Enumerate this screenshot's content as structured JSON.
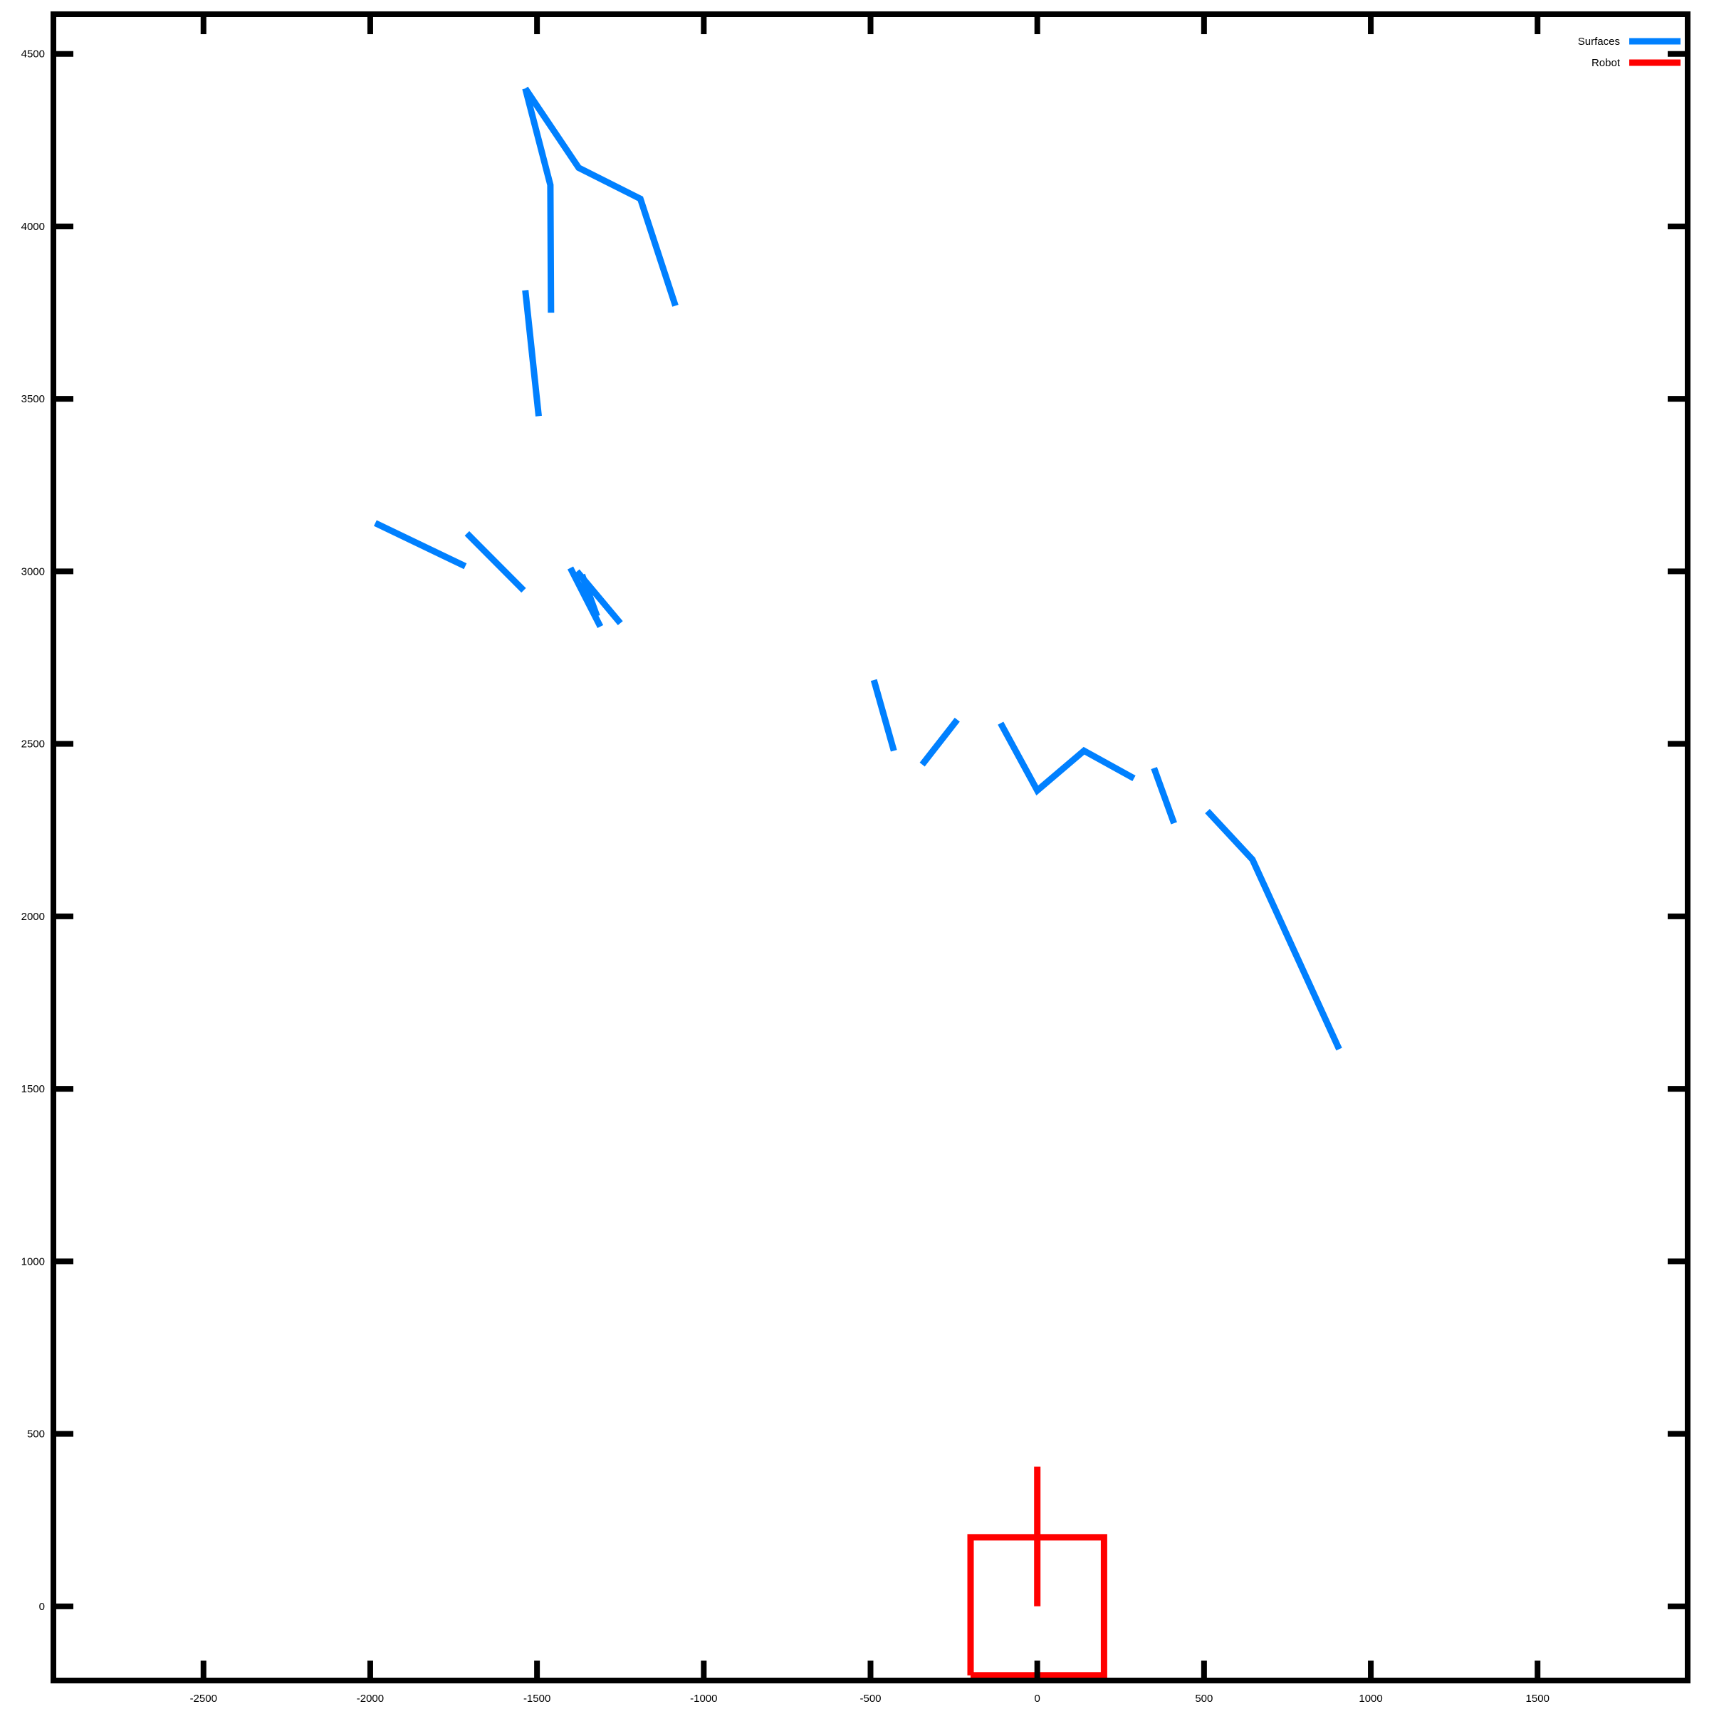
{
  "chart_data": {
    "type": "line",
    "xlim": [
      -2950,
      1950
    ],
    "ylim": [
      -215,
      4615
    ],
    "x_ticks": [
      -2500,
      -2000,
      -1500,
      -1000,
      -500,
      0,
      500,
      1000,
      1500
    ],
    "y_ticks": [
      0,
      500,
      1000,
      1500,
      2000,
      2500,
      3000,
      3500,
      4000,
      4500
    ],
    "grid": false,
    "legend_position": "top-right",
    "series": [
      {
        "name": "Surfaces",
        "color": "#0080ff",
        "segments": [
          [
            [
              -1535,
              4400
            ],
            [
              -1375,
              4170
            ],
            [
              -1190,
              4080
            ],
            [
              -1085,
              3770
            ]
          ],
          [
            [
              -1535,
              4400
            ],
            [
              -1460,
              4120
            ],
            [
              -1458,
              3750
            ]
          ],
          [
            [
              -1535,
              3815
            ],
            [
              -1495,
              3450
            ]
          ],
          [
            [
              -1985,
              3140
            ],
            [
              -1715,
              3015
            ]
          ],
          [
            [
              -1710,
              3110
            ],
            [
              -1540,
              2945
            ]
          ],
          [
            [
              -1400,
              3010
            ],
            [
              -1310,
              2840
            ]
          ],
          [
            [
              -1380,
              3000
            ],
            [
              -1250,
              2850
            ]
          ],
          [
            [
              -1365,
              2990
            ],
            [
              -1320,
              2870
            ]
          ],
          [
            [
              -490,
              2685
            ],
            [
              -430,
              2480
            ]
          ],
          [
            [
              -345,
              2440
            ],
            [
              -240,
              2570
            ]
          ],
          [
            [
              -110,
              2560
            ],
            [
              0,
              2365
            ],
            [
              140,
              2480
            ],
            [
              290,
              2400
            ]
          ],
          [
            [
              350,
              2430
            ],
            [
              410,
              2270
            ]
          ],
          [
            [
              510,
              2305
            ],
            [
              645,
              2165
            ],
            [
              905,
              1615
            ]
          ]
        ]
      },
      {
        "name": "Robot",
        "color": "#ff0000",
        "segments": [
          [
            [
              -200,
              -200
            ],
            [
              200,
              -200
            ],
            [
              200,
              200
            ],
            [
              -200,
              200
            ],
            [
              -200,
              -200
            ]
          ],
          [
            [
              0,
              0
            ],
            [
              0,
              405
            ]
          ]
        ]
      }
    ]
  }
}
